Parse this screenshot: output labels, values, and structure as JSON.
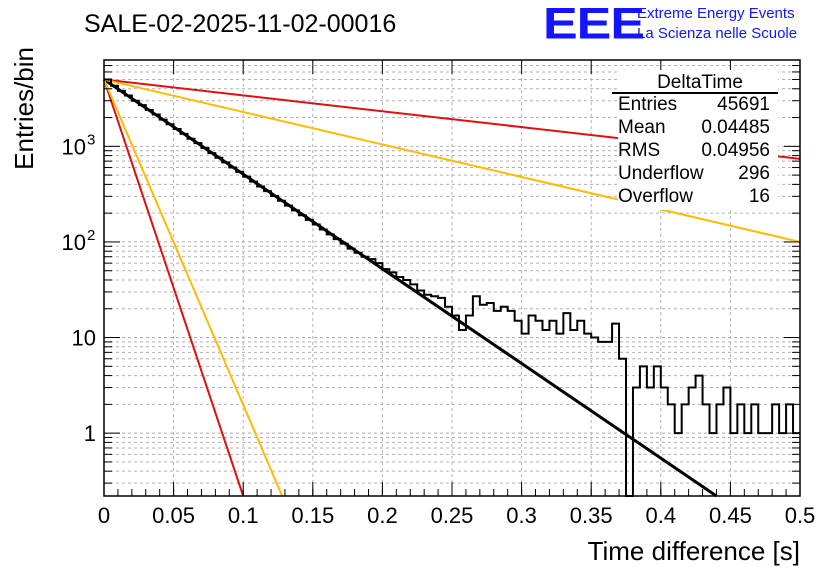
{
  "chart_data": {
    "type": "line",
    "title": "SALE-02-2025-11-02-00016",
    "xlabel": "Time difference [s]",
    "ylabel": "Entries/bin",
    "yscale": "log",
    "xlim": [
      0,
      0.5
    ],
    "ylim": [
      0.22,
      8000
    ],
    "grid": true,
    "xticks": [
      {
        "value": 0,
        "label": "0"
      },
      {
        "value": 0.05,
        "label": "0.05"
      },
      {
        "value": 0.1,
        "label": "0.1"
      },
      {
        "value": 0.15,
        "label": "0.15"
      },
      {
        "value": 0.2,
        "label": "0.2"
      },
      {
        "value": 0.25,
        "label": "0.25"
      },
      {
        "value": 0.3,
        "label": "0.3"
      },
      {
        "value": 0.35,
        "label": "0.35"
      },
      {
        "value": 0.4,
        "label": "0.4"
      },
      {
        "value": 0.45,
        "label": "0.45"
      },
      {
        "value": 0.5,
        "label": "0.5"
      }
    ],
    "yticks": [
      {
        "value": 1,
        "base": "1",
        "exp": ""
      },
      {
        "value": 10,
        "base": "10",
        "exp": ""
      },
      {
        "value": 100,
        "base": "10",
        "exp": "2"
      },
      {
        "value": 1000,
        "base": "10",
        "exp": "3"
      }
    ],
    "histogram": {
      "name": "DeltaTime",
      "bin_width": 0.005,
      "counts": [
        5000,
        4300,
        3800,
        3400,
        3000,
        2700,
        2400,
        2150,
        1900,
        1700,
        1520,
        1350,
        1200,
        1080,
        960,
        850,
        760,
        680,
        600,
        540,
        480,
        428,
        380,
        340,
        302,
        270,
        240,
        214,
        190,
        170,
        152,
        135,
        120,
        107,
        96,
        85,
        77,
        70,
        66,
        60,
        52,
        48,
        43,
        40,
        36,
        31,
        28,
        27,
        26,
        21,
        17,
        12,
        17,
        27,
        22,
        23,
        19,
        21,
        19,
        15,
        11,
        17,
        15,
        12,
        15,
        11,
        18,
        12,
        15,
        11,
        10,
        9,
        9,
        14,
        6,
        0.1,
        3,
        5,
        3,
        5,
        3,
        2,
        1,
        2,
        3,
        4,
        2,
        1,
        2,
        3,
        1,
        2,
        1,
        2,
        1,
        1,
        2,
        1,
        2,
        1
      ]
    },
    "series": [
      {
        "name": "fit-black",
        "color": "#000000",
        "x_start": 0,
        "y_start": 5000,
        "x_end": 0.44,
        "y_end": 0.22
      },
      {
        "name": "red-slow",
        "color": "#dd1111",
        "x_start": 0,
        "y_start": 5000,
        "x_end": 0.5,
        "y_end": 740
      },
      {
        "name": "orange-slow",
        "color": "#ffbb00",
        "x_start": 0,
        "y_start": 5000,
        "x_end": 0.5,
        "y_end": 100
      },
      {
        "name": "red-fast",
        "color": "#dd1111",
        "x_start": 0,
        "y_start": 5000,
        "x_end": 0.1,
        "y_end": 0.22
      },
      {
        "name": "orange-fast",
        "color": "#ffbb00",
        "x_start": 0,
        "y_start": 5000,
        "x_end": 0.128,
        "y_end": 0.22
      }
    ],
    "stats": {
      "title": "DeltaTime",
      "rows": [
        {
          "label": "Entries",
          "value": "45691"
        },
        {
          "label": "Mean",
          "value": "0.04485"
        },
        {
          "label": "RMS",
          "value": "0.04956"
        },
        {
          "label": "Underflow",
          "value": "296"
        },
        {
          "label": "Overflow",
          "value": "16"
        }
      ]
    }
  },
  "branding": {
    "logo_text": "EEE",
    "line1": "Extreme Energy Events",
    "line2": "La Scienza nelle Scuole",
    "color": "#1414ff"
  }
}
